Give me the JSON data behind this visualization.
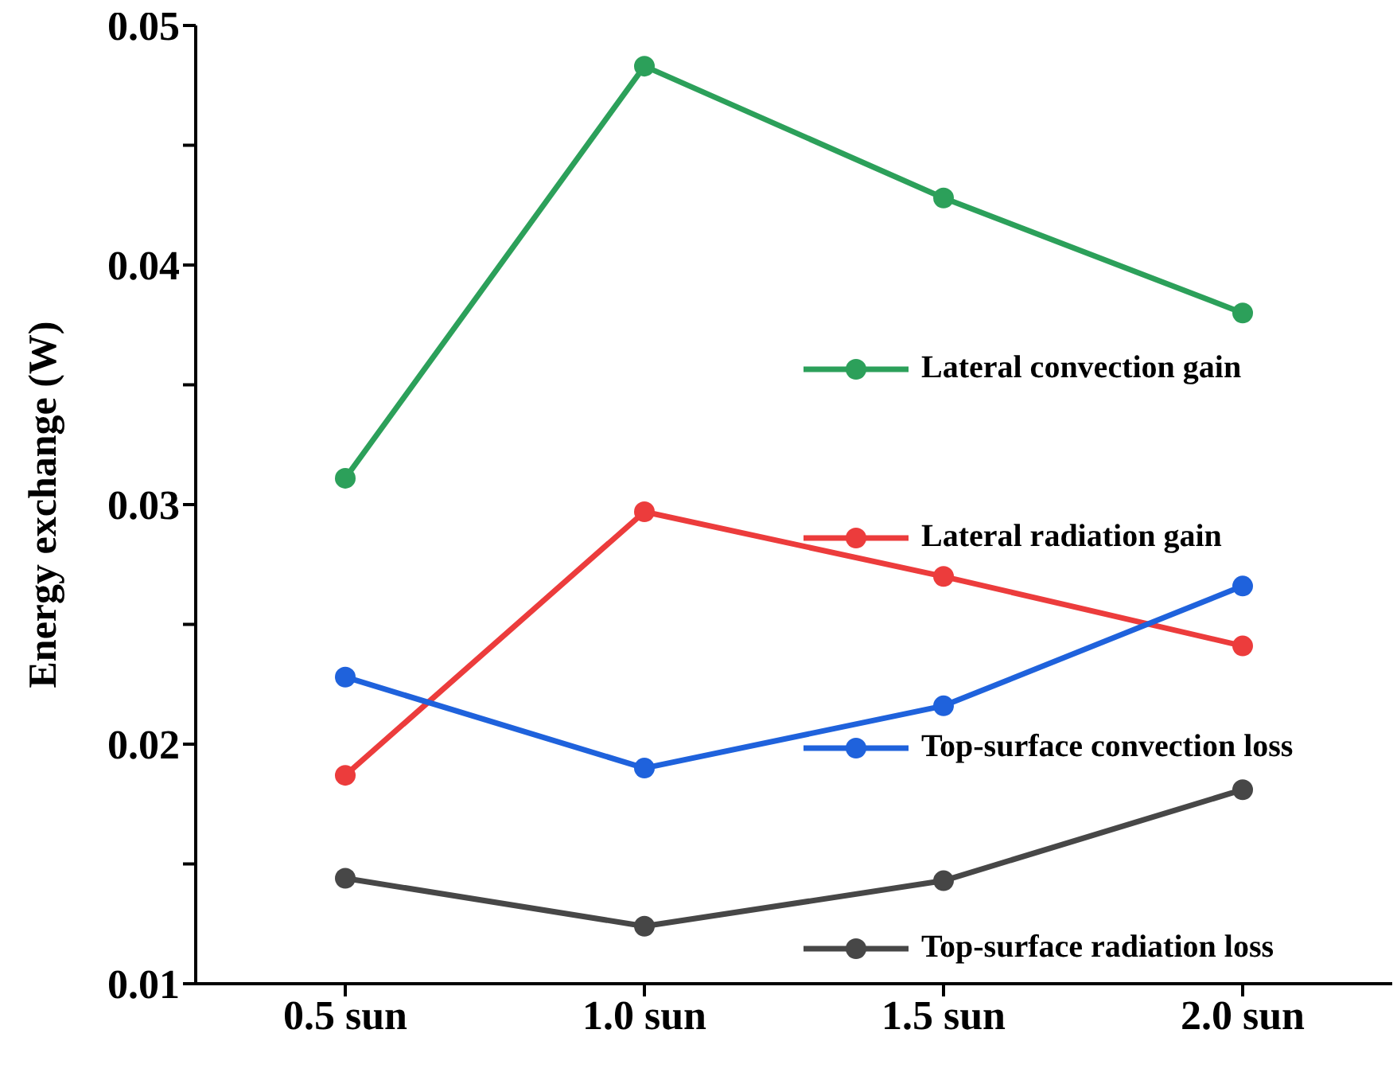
{
  "chart_data": {
    "type": "line",
    "ylabel": "Energy exchange (W)",
    "categories": [
      "0.5 sun",
      "1.0 sun",
      "1.5 sun",
      "2.0 sun"
    ],
    "series": [
      {
        "name": "Lateral convection gain",
        "color": "#2ca05a",
        "values": [
          0.0311,
          0.0483,
          0.0428,
          0.038
        ]
      },
      {
        "name": "Lateral radiation gain",
        "color": "#ec3c3c",
        "values": [
          0.0187,
          0.0297,
          0.027,
          0.0241
        ]
      },
      {
        "name": "Top-surface convection loss",
        "color": "#1f62dc",
        "values": [
          0.0228,
          0.019,
          0.0216,
          0.0266
        ]
      },
      {
        "name": "Top-surface radiation loss",
        "color": "#474747",
        "values": [
          0.0144,
          0.0124,
          0.0143,
          0.0181
        ]
      }
    ],
    "ylim": [
      0.01,
      0.05
    ],
    "yticks": [
      0.01,
      {
        "value": 0.015,
        "label": null
      },
      0.02,
      {
        "value": 0.025,
        "label": null
      },
      0.03,
      {
        "value": 0.035,
        "label": null
      },
      0.04,
      {
        "value": 0.045,
        "label": null
      },
      0.05
    ],
    "marker": "circle",
    "line_style": "solid",
    "legend": "right",
    "grid": false
  }
}
